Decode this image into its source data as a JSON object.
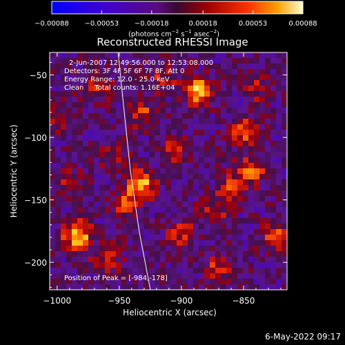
{
  "chart_data": {
    "type": "heatmap",
    "title": "Reconstructed RHESSI Image",
    "xlabel": "Heliocentric X (arcsec)",
    "ylabel": "Heliocentric Y (arcsec)",
    "xlim": [
      -1006,
      -815
    ],
    "ylim": [
      -222,
      -32
    ],
    "xticks": [
      -1000,
      -950,
      -900,
      -850
    ],
    "yticks": [
      -50,
      -100,
      -150,
      -200
    ],
    "xtick_labels": [
      "−1000",
      "−950",
      "−900",
      "−850"
    ],
    "ytick_labels": [
      "−50",
      "−100",
      "−150",
      "−200"
    ],
    "colorbar": {
      "min": -0.00088,
      "max": 0.00088,
      "ticks": [
        -0.00088,
        -0.00053,
        -0.00018,
        0.00018,
        0.00053,
        0.00088
      ],
      "tick_labels": [
        "−0.00088",
        "−0.00053",
        "−0.00018",
        "0.00018",
        "0.00053",
        "0.00088"
      ],
      "unit_text": "(photons cm",
      "unit_sup1": "−2",
      "unit_mid": " s",
      "unit_sup2": "−1",
      "unit_mid2": " asec",
      "unit_sup3": "−2",
      "unit_end": ")"
    },
    "peaks": [
      {
        "x": -984,
        "y": -178,
        "v": 0.00088
      },
      {
        "x": -933,
        "y": -138,
        "v": 0.00085
      },
      {
        "x": -886,
        "y": -63,
        "v": 0.0008
      },
      {
        "x": -843,
        "y": -126,
        "v": 0.00055
      },
      {
        "x": -860,
        "y": -140,
        "v": 0.00052
      },
      {
        "x": -968,
        "y": -60,
        "v": 0.00045
      },
      {
        "x": -930,
        "y": -82,
        "v": 0.0005
      },
      {
        "x": -850,
        "y": -95,
        "v": 0.0006
      },
      {
        "x": -900,
        "y": -178,
        "v": 0.00045
      },
      {
        "x": -870,
        "y": -205,
        "v": 0.00045
      },
      {
        "x": -960,
        "y": -197,
        "v": 0.0004
      },
      {
        "x": -945,
        "y": -155,
        "v": 0.00045
      },
      {
        "x": -905,
        "y": -110,
        "v": 0.0004
      },
      {
        "x": -990,
        "y": -135,
        "v": 0.00035
      },
      {
        "x": -825,
        "y": -178,
        "v": 0.0005
      },
      {
        "x": -915,
        "y": -52,
        "v": 0.0004
      },
      {
        "x": -875,
        "y": -160,
        "v": 0.0004
      },
      {
        "x": -955,
        "y": -115,
        "v": 0.0003
      },
      {
        "x": -840,
        "y": -60,
        "v": 0.00035
      },
      {
        "x": -1000,
        "y": -85,
        "v": 0.0003
      }
    ],
    "limb": [
      {
        "x": -951,
        "y": -32
      },
      {
        "x": -946,
        "y": -80
      },
      {
        "x": -941,
        "y": -127
      },
      {
        "x": -934,
        "y": -175
      },
      {
        "x": -925,
        "y": -222
      }
    ]
  },
  "annotations": {
    "time_range": "2-Jun-2007 12:49:56.000 to 12:53:08.000",
    "detectors": "Detectors: 3F 4F 5F 6F 7F 8F, Att 0",
    "energy": "Energy Range: 12.0 - 25.0 keV",
    "clean": "Clean     Total counts: 1.16E+04",
    "peak": "Position of Peak = [-984,-178]"
  },
  "footer": {
    "date": "6-May-2022 09:17"
  }
}
